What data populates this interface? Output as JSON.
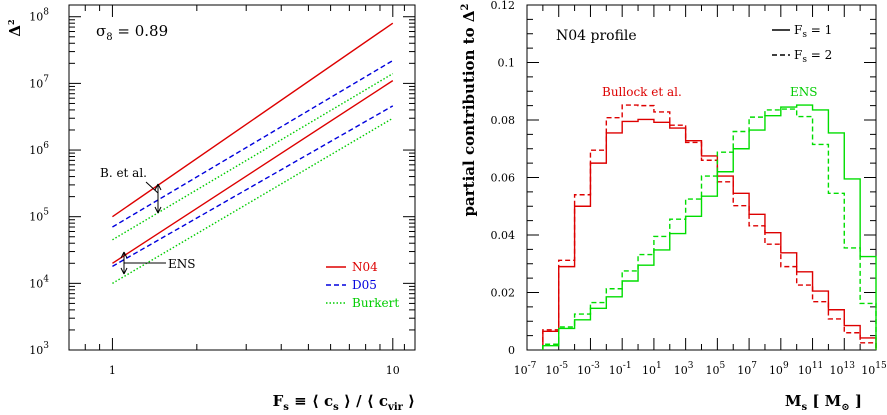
{
  "chart_data": [
    {
      "type": "line",
      "xscale": "log",
      "yscale": "log",
      "xlim": [
        0.7,
        12
      ],
      "ylim": [
        1000,
        150000000
      ],
      "ylabel_main": "Δ",
      "ylabel_sup": "2",
      "xlabel_parts": [
        "F",
        "s",
        " ≡ ⟨ ",
        "c",
        "s",
        " ⟩ / ⟨ ",
        "c",
        "vir",
        " ⟩"
      ],
      "x_tick_labels": [
        "1",
        "10"
      ],
      "y_tick_labels": [
        {
          "base": "10",
          "exp": "3"
        },
        {
          "base": "10",
          "exp": "4"
        },
        {
          "base": "10",
          "exp": "5"
        },
        {
          "base": "10",
          "exp": "6"
        },
        {
          "base": "10",
          "exp": "7"
        },
        {
          "base": "10",
          "exp": "8"
        }
      ],
      "annotation_sigma": {
        "main": "σ",
        "sub": "8",
        "rest": " = 0.89"
      },
      "annotation_b": "B. et al.",
      "annotation_ens": "ENS",
      "legend": [
        {
          "label": "N04",
          "color": "#dd0000",
          "dash": "solid"
        },
        {
          "label": "D05",
          "color": "#0000dd",
          "dash": "dashed"
        },
        {
          "label": "Burkert",
          "color": "#00cc00",
          "dash": "dotted"
        }
      ],
      "series": [
        {
          "name": "N04",
          "group": "Bullock et al.",
          "color": "#dd0000",
          "dash": "solid",
          "x": [
            1,
            10
          ],
          "y": [
            100000,
            80000000
          ]
        },
        {
          "name": "D05",
          "group": "Bullock et al.",
          "color": "#0000dd",
          "dash": "dashed",
          "x": [
            1,
            10
          ],
          "y": [
            70000,
            22000000
          ]
        },
        {
          "name": "Burkert",
          "group": "Bullock et al.",
          "color": "#00cc00",
          "dash": "dotted",
          "x": [
            1,
            10
          ],
          "y": [
            45000,
            14000000
          ]
        },
        {
          "name": "N04",
          "group": "ENS",
          "color": "#dd0000",
          "dash": "solid",
          "x": [
            1,
            10
          ],
          "y": [
            20000,
            11000000
          ]
        },
        {
          "name": "D05",
          "group": "ENS",
          "color": "#0000dd",
          "dash": "dashed",
          "x": [
            1,
            10
          ],
          "y": [
            18000,
            4600000
          ]
        },
        {
          "name": "Burkert",
          "group": "ENS",
          "color": "#00cc00",
          "dash": "dotted",
          "x": [
            1,
            10
          ],
          "y": [
            10000,
            3000000
          ]
        }
      ]
    },
    {
      "type": "histogram",
      "xlim": [
        -7,
        15
      ],
      "ylim": [
        0,
        0.12
      ],
      "ylabel": "partial contribution to",
      "ylabel_sym": "Δ",
      "ylabel_sup": "2",
      "xlabel_parts": [
        "M",
        "s",
        " [ M",
        "⊙",
        " ]"
      ],
      "x_tick_labels": [
        {
          "base": "10",
          "exp": "-7"
        },
        {
          "base": "10",
          "exp": "-5"
        },
        {
          "base": "10",
          "exp": "-3"
        },
        {
          "base": "10",
          "exp": "-1"
        },
        {
          "base": "10",
          "exp": "1"
        },
        {
          "base": "10",
          "exp": "3"
        },
        {
          "base": "10",
          "exp": "5"
        },
        {
          "base": "10",
          "exp": "7"
        },
        {
          "base": "10",
          "exp": "9"
        },
        {
          "base": "10",
          "exp": "11"
        },
        {
          "base": "10",
          "exp": "13"
        },
        {
          "base": "10",
          "exp": "15"
        }
      ],
      "y_tick_labels": [
        "0",
        "0.02",
        "0.04",
        "0.06",
        "0.08",
        "0.1",
        "0.12"
      ],
      "title": "N04 profile",
      "annotation_bullock": "Bullock et al.",
      "annotation_ens": "ENS",
      "legend": [
        {
          "main": "F",
          "sub": "s",
          "rest": " = 1",
          "dash": "solid"
        },
        {
          "main": "F",
          "sub": "s",
          "rest": " = 2",
          "dash": "dashed"
        }
      ],
      "bin_edges": [
        -6,
        -5,
        -4,
        -3,
        -2,
        -1,
        0,
        1,
        2,
        3,
        4,
        5,
        6,
        7,
        8,
        9,
        10,
        11,
        12,
        13,
        14,
        15
      ],
      "series": [
        {
          "name": "Bullock et al. Fs=1",
          "color": "#dd0000",
          "dash": "solid",
          "values": [
            0.0065,
            0.029,
            0.05,
            0.065,
            0.0755,
            0.0795,
            0.0802,
            0.0792,
            0.0772,
            0.0728,
            0.0675,
            0.0605,
            0.0545,
            0.0472,
            0.0408,
            0.0338,
            0.0272,
            0.0205,
            0.014,
            0.0085,
            0.0042
          ]
        },
        {
          "name": "Bullock et al. Fs=2",
          "color": "#dd0000",
          "dash": "dashed",
          "values": [
            0.007,
            0.0312,
            0.054,
            0.0695,
            0.0808,
            0.0852,
            0.085,
            0.0828,
            0.0782,
            0.0722,
            0.066,
            0.0585,
            0.0502,
            0.0432,
            0.0368,
            0.029,
            0.0226,
            0.0168,
            0.0108,
            0.006,
            0.0025
          ]
        },
        {
          "name": "ENS Fs=1",
          "color": "#00dd00",
          "dash": "solid",
          "values": [
            0.0015,
            0.0075,
            0.0105,
            0.0145,
            0.0185,
            0.024,
            0.0295,
            0.0348,
            0.0405,
            0.0465,
            0.0535,
            0.062,
            0.07,
            0.0765,
            0.0815,
            0.0845,
            0.0852,
            0.0835,
            0.0755,
            0.0595,
            0.0325
          ]
        },
        {
          "name": "ENS Fs=2",
          "color": "#00dd00",
          "dash": "dashed",
          "values": [
            0.002,
            0.008,
            0.0125,
            0.0165,
            0.0213,
            0.0275,
            0.0332,
            0.0395,
            0.0455,
            0.0525,
            0.0605,
            0.0688,
            0.076,
            0.081,
            0.0835,
            0.0838,
            0.0812,
            0.0715,
            0.0545,
            0.0355,
            0.0162
          ]
        }
      ]
    }
  ]
}
